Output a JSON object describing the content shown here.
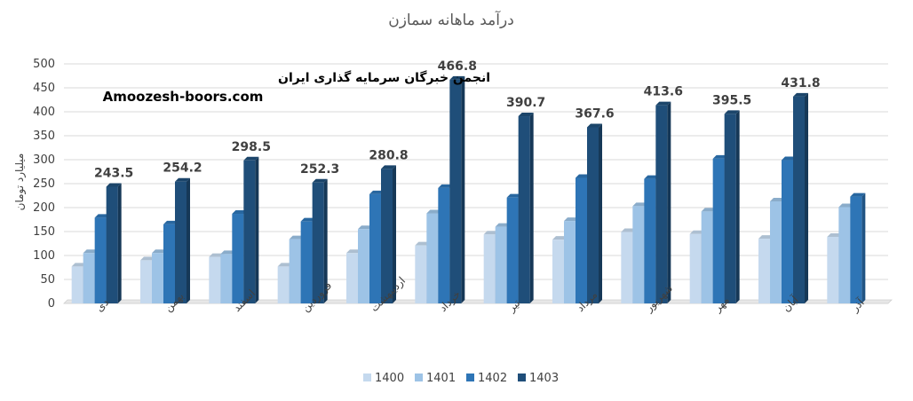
{
  "watermark": {
    "line1": "انجمن خبرگان سرمایه گذاری ایران",
    "line2": "Amoozesh-boors.com"
  },
  "chart_data": {
    "type": "bar",
    "title": "درآمد ماهانه سمازن",
    "ylabel": "میلیارد تومان",
    "xlabel": "",
    "ylim": [
      0,
      500
    ],
    "yticks": [
      0,
      50,
      100,
      150,
      200,
      250,
      300,
      350,
      400,
      450,
      500
    ],
    "grid": true,
    "legend_position": "bottom",
    "categories": [
      "دی",
      "بهمن",
      "اسفند",
      "فروردین",
      "اردیبهشت",
      "خرداد",
      "تیر",
      "مرداد",
      "شهریور",
      "مهر",
      "آبان",
      "آذر"
    ],
    "series": [
      {
        "name": "1400",
        "color": "#c5d9ee",
        "values": [
          77,
          90,
          97,
          77,
          105,
          121,
          144,
          133,
          149,
          145,
          135,
          139
        ]
      },
      {
        "name": "1401",
        "color": "#9dc3e6",
        "values": [
          105,
          105,
          103,
          134,
          155,
          188,
          160,
          172,
          203,
          192,
          213,
          201
        ]
      },
      {
        "name": "1402",
        "color": "#2e75b6",
        "values": [
          179,
          165,
          187,
          171,
          228,
          241,
          221,
          262,
          260,
          302,
          299,
          223
        ]
      },
      {
        "name": "1403",
        "color": "#1f4e79",
        "values": [
          243.5,
          254.2,
          298.5,
          252.3,
          280.8,
          466.8,
          390.7,
          367.6,
          413.6,
          395.5,
          431.8,
          null
        ],
        "data_labels": [
          "243.5",
          "254.2",
          "298.5",
          "252.3",
          "280.8",
          "466.8",
          "390.7",
          "367.6",
          "413.6",
          "395.5",
          "431.8",
          ""
        ]
      }
    ]
  }
}
